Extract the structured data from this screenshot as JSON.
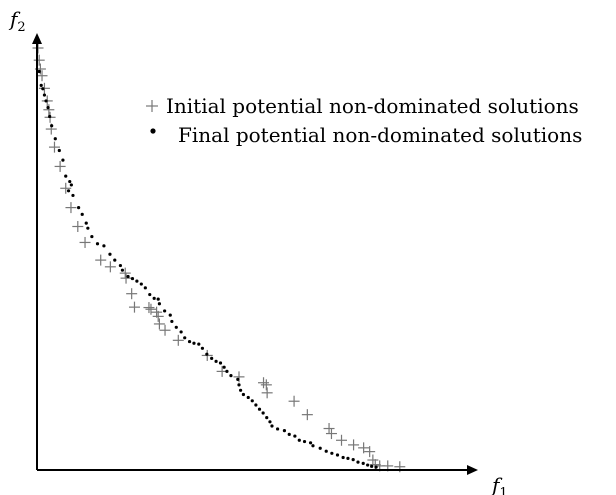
{
  "chart_data": {
    "type": "scatter",
    "title": "",
    "xlabel": {
      "var": "f",
      "sub": "1"
    },
    "ylabel": {
      "var": "f",
      "sub": "2"
    },
    "xlim": [
      0,
      100
    ],
    "ylim": [
      0,
      100
    ],
    "grid": false,
    "legend_position": "top-right",
    "series": [
      {
        "name": "Initial potential non-dominated solutions",
        "marker": "plus",
        "color": "#777777",
        "points": [
          [
            0.0,
            100.0
          ],
          [
            0.3,
            97.1
          ],
          [
            0.6,
            95.0
          ],
          [
            1.0,
            93.4
          ],
          [
            1.6,
            90.4
          ],
          [
            2.3,
            87.4
          ],
          [
            2.7,
            85.3
          ],
          [
            3.0,
            83.5
          ],
          [
            3.3,
            80.7
          ],
          [
            4.1,
            76.4
          ],
          [
            5.5,
            71.8
          ],
          [
            6.9,
            66.6
          ],
          [
            8.2,
            62.0
          ],
          [
            9.9,
            57.5
          ],
          [
            11.7,
            53.7
          ],
          [
            15.6,
            49.5
          ],
          [
            18.0,
            47.9
          ],
          [
            21.7,
            46.4
          ],
          [
            21.9,
            45.2
          ],
          [
            23.3,
            41.5
          ],
          [
            24.0,
            38.3
          ],
          [
            27.6,
            38.2
          ],
          [
            28.1,
            37.8
          ],
          [
            29.5,
            37.1
          ],
          [
            29.9,
            36.1
          ],
          [
            30.2,
            34.3
          ],
          [
            31.6,
            32.8
          ],
          [
            34.9,
            30.4
          ],
          [
            42.1,
            26.8
          ],
          [
            45.8,
            23.0
          ],
          [
            50.0,
            21.7
          ],
          [
            56.1,
            20.3
          ],
          [
            56.8,
            19.8
          ],
          [
            57.0,
            17.9
          ],
          [
            63.7,
            15.9
          ],
          [
            67.0,
            12.7
          ],
          [
            72.4,
            9.4
          ],
          [
            73.0,
            8.2
          ],
          [
            75.5,
            6.6
          ],
          [
            78.5,
            5.5
          ],
          [
            81.0,
            4.8
          ],
          [
            82.5,
            3.9
          ],
          [
            83.3,
            1.9
          ],
          [
            83.9,
            0.8
          ],
          [
            85.0,
            0.5
          ],
          [
            87.0,
            0.5
          ],
          [
            90.0,
            0.3
          ]
        ]
      },
      {
        "name": "Final potential non-dominated solutions",
        "marker": "dot",
        "color": "#000000",
        "points": [
          [
            0.3,
            94.4
          ],
          [
            0.8,
            91.1
          ],
          [
            1.2,
            90.3
          ],
          [
            1.6,
            88.8
          ],
          [
            2.0,
            87.4
          ],
          [
            2.5,
            85.8
          ],
          [
            2.9,
            83.7
          ],
          [
            3.4,
            81.5
          ],
          [
            4.3,
            78.4
          ],
          [
            5.3,
            75.6
          ],
          [
            6.2,
            73.3
          ],
          [
            6.9,
            69.5
          ],
          [
            7.9,
            68.2
          ],
          [
            8.3,
            67.4
          ],
          [
            7.6,
            66.0
          ],
          [
            8.7,
            64.9
          ],
          [
            10.1,
            62.0
          ],
          [
            11.0,
            60.4
          ],
          [
            12.0,
            58.3
          ],
          [
            12.4,
            57.1
          ],
          [
            13.4,
            55.1
          ],
          [
            14.8,
            53.4
          ],
          [
            16.4,
            52.9
          ],
          [
            17.9,
            50.9
          ],
          [
            19.1,
            49.5
          ],
          [
            20.5,
            48.2
          ],
          [
            21.0,
            47.1
          ],
          [
            22.4,
            45.6
          ],
          [
            23.5,
            45.1
          ],
          [
            24.6,
            44.5
          ],
          [
            25.7,
            43.8
          ],
          [
            26.7,
            42.9
          ],
          [
            27.8,
            41.3
          ],
          [
            28.9,
            40.4
          ],
          [
            29.9,
            40.2
          ],
          [
            30.2,
            39.1
          ],
          [
            31.5,
            37.4
          ],
          [
            32.9,
            36.4
          ],
          [
            33.3,
            34.9
          ],
          [
            34.4,
            33.5
          ],
          [
            35.6,
            32.4
          ],
          [
            36.5,
            31.0
          ],
          [
            37.7,
            30.1
          ],
          [
            38.8,
            29.7
          ],
          [
            40.0,
            29.5
          ],
          [
            40.9,
            28.5
          ],
          [
            42.0,
            27.1
          ],
          [
            43.2,
            26.1
          ],
          [
            44.3,
            25.4
          ],
          [
            45.4,
            25.0
          ],
          [
            46.3,
            24.0
          ],
          [
            47.0,
            23.0
          ],
          [
            48.0,
            22.0
          ],
          [
            49.7,
            21.1
          ],
          [
            50.0,
            19.8
          ],
          [
            50.4,
            18.5
          ],
          [
            51.1,
            17.5
          ],
          [
            52.3,
            16.8
          ],
          [
            53.3,
            16.0
          ],
          [
            54.2,
            15.0
          ],
          [
            55.1,
            14.0
          ],
          [
            56.0,
            13.1
          ],
          [
            56.9,
            12.0
          ],
          [
            57.7,
            11.0
          ],
          [
            58.2,
            10.0
          ],
          [
            59.6,
            9.3
          ],
          [
            61.3,
            8.9
          ],
          [
            62.5,
            8.0
          ],
          [
            63.9,
            7.6
          ],
          [
            65.0,
            6.6
          ],
          [
            66.3,
            6.3
          ],
          [
            67.8,
            6.0
          ],
          [
            68.4,
            5.3
          ],
          [
            70.2,
            4.7
          ],
          [
            71.7,
            4.0
          ],
          [
            73.1,
            3.5
          ],
          [
            74.5,
            3.1
          ],
          [
            75.9,
            2.5
          ],
          [
            77.1,
            2.3
          ],
          [
            78.4,
            2.0
          ],
          [
            79.6,
            1.4
          ],
          [
            80.9,
            1.1
          ],
          [
            82.0,
            0.7
          ],
          [
            83.0,
            0.4
          ],
          [
            84.1,
            0.2
          ]
        ]
      }
    ]
  }
}
